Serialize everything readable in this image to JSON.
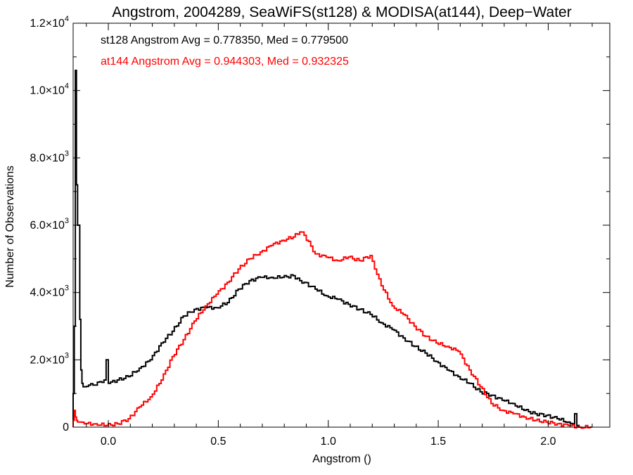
{
  "chart_data": {
    "type": "line",
    "title": "Angstrom, 2004289, SeaWiFS(st128) & MODISA(at144), Deep−Water",
    "xlabel": "Angstrom ()",
    "ylabel": "Number of Observations",
    "xlim": [
      -0.16,
      2.28
    ],
    "ylim": [
      0,
      12000
    ],
    "x_ticks": [
      {
        "value": 0.0,
        "label": "0.0"
      },
      {
        "value": 0.5,
        "label": "0.5"
      },
      {
        "value": 1.0,
        "label": "1.0"
      },
      {
        "value": 1.5,
        "label": "1.5"
      },
      {
        "value": 2.0,
        "label": "2.0"
      }
    ],
    "y_ticks": [
      {
        "value": 0,
        "mant": "0",
        "exp": ""
      },
      {
        "value": 2000,
        "mant": "2.0×10",
        "exp": "3"
      },
      {
        "value": 4000,
        "mant": "4.0×10",
        "exp": "3"
      },
      {
        "value": 6000,
        "mant": "6.0×10",
        "exp": "3"
      },
      {
        "value": 8000,
        "mant": "8.0×10",
        "exp": "3"
      },
      {
        "value": 10000,
        "mant": "1.0×10",
        "exp": "4"
      },
      {
        "value": 12000,
        "mant": "1.2×10",
        "exp": "4"
      }
    ],
    "grid": false,
    "series": [
      {
        "name": "st128",
        "color": "#000000",
        "annotation": "st128 Angstrom Avg = 0.778350, Med = 0.779500",
        "x": [
          -0.16,
          -0.155,
          -0.15,
          -0.145,
          -0.14,
          -0.135,
          -0.13,
          -0.125,
          -0.12,
          -0.115,
          -0.11,
          -0.1,
          -0.08,
          -0.05,
          -0.03,
          -0.01,
          0.0,
          0.005,
          0.01,
          0.05,
          0.1,
          0.15,
          0.2,
          0.25,
          0.3,
          0.35,
          0.4,
          0.45,
          0.5,
          0.55,
          0.6,
          0.65,
          0.7,
          0.75,
          0.8,
          0.85,
          0.88,
          0.9,
          0.95,
          1.0,
          1.05,
          1.1,
          1.15,
          1.2,
          1.25,
          1.3,
          1.35,
          1.4,
          1.45,
          1.5,
          1.55,
          1.6,
          1.65,
          1.7,
          1.75,
          1.8,
          1.85,
          1.9,
          1.95,
          2.0,
          2.05,
          2.1,
          2.12,
          2.13,
          2.14,
          2.15
        ],
        "y": [
          0,
          1000,
          3000,
          10600,
          7200,
          6000,
          6000,
          3200,
          1700,
          1300,
          1200,
          1200,
          1250,
          1250,
          1350,
          1400,
          2000,
          1300,
          1300,
          1400,
          1500,
          1750,
          2000,
          2500,
          2850,
          3300,
          3500,
          3550,
          3550,
          3700,
          4100,
          4350,
          4450,
          4450,
          4450,
          4500,
          4350,
          4300,
          4100,
          3900,
          3800,
          3650,
          3500,
          3350,
          3100,
          2900,
          2650,
          2400,
          2200,
          1950,
          1700,
          1500,
          1300,
          1050,
          950,
          800,
          700,
          500,
          400,
          350,
          250,
          150,
          100,
          400,
          50,
          0
        ]
      },
      {
        "name": "at144",
        "color": "#ff0000",
        "annotation": "at144 Angstrom Avg = 0.944303, Med = 0.932325",
        "x": [
          -0.16,
          -0.155,
          -0.15,
          -0.145,
          -0.14,
          -0.13,
          -0.1,
          -0.05,
          0.0,
          0.05,
          0.1,
          0.15,
          0.2,
          0.25,
          0.3,
          0.35,
          0.4,
          0.45,
          0.5,
          0.55,
          0.6,
          0.65,
          0.7,
          0.75,
          0.8,
          0.85,
          0.88,
          0.9,
          0.95,
          1.0,
          1.05,
          1.1,
          1.15,
          1.2,
          1.22,
          1.25,
          1.3,
          1.35,
          1.4,
          1.45,
          1.5,
          1.55,
          1.6,
          1.65,
          1.7,
          1.75,
          1.8,
          1.85,
          1.9,
          1.95,
          2.0,
          2.05,
          2.1,
          2.15,
          2.2
        ],
        "y": [
          0,
          200,
          500,
          300,
          200,
          150,
          100,
          100,
          50,
          100,
          250,
          600,
          900,
          1400,
          2100,
          2600,
          3150,
          3600,
          3950,
          4300,
          4700,
          5000,
          5200,
          5400,
          5550,
          5650,
          5800,
          5700,
          5150,
          5050,
          4950,
          5050,
          4950,
          5100,
          4700,
          4200,
          3600,
          3350,
          3000,
          2700,
          2500,
          2400,
          2250,
          1700,
          1200,
          700,
          500,
          400,
          300,
          200,
          150,
          100,
          50,
          0,
          0
        ]
      }
    ]
  }
}
